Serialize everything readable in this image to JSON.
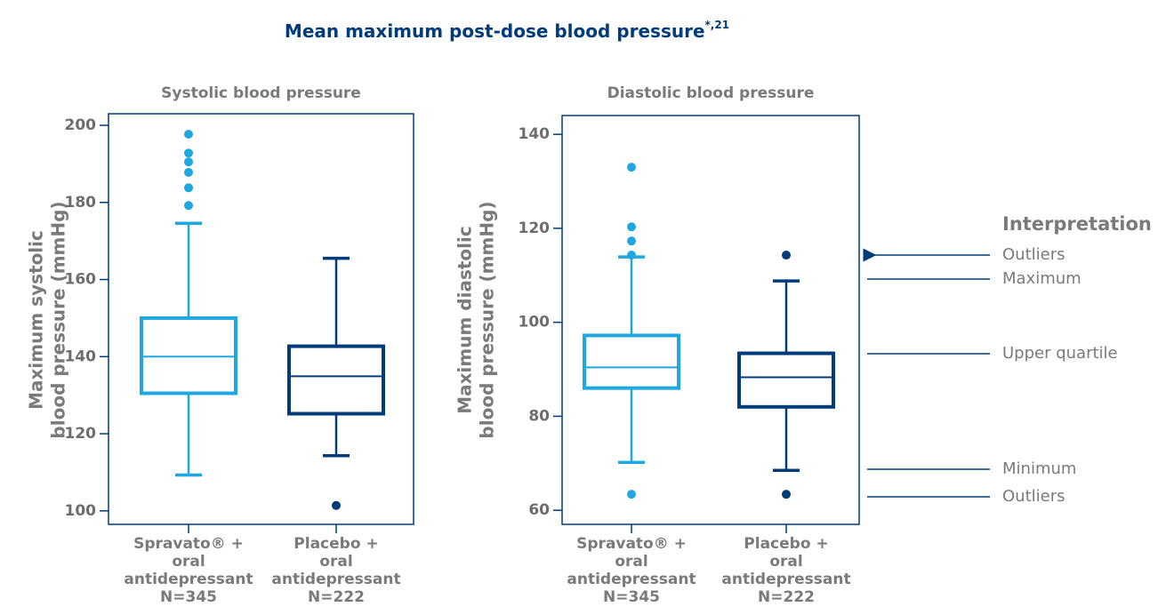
{
  "title": "Mean maximum post-dose blood pressure",
  "title_superscript": "*,21",
  "chart_data": [
    {
      "type": "box",
      "title": "Systolic blood pressure",
      "y_label": [
        "Maximum systolic",
        "blood pressure (mmHg)"
      ],
      "categories": [
        [
          "Spravato® +",
          "oral",
          "antidepressant",
          "N=345"
        ],
        [
          "Placebo +",
          "oral",
          "antidepressant",
          "N=222"
        ]
      ],
      "ylim": [
        96.5,
        203
      ],
      "yticks": [
        100,
        120,
        140,
        160,
        180,
        200
      ],
      "boxes": [
        {
          "color": "#1ea7e1",
          "min": 109.3,
          "q1": 130.5,
          "median": 140,
          "q3": 150,
          "max": 174.6,
          "outliers": [
            197.7,
            192.8,
            190.5,
            187.8,
            183.8,
            179.2
          ]
        },
        {
          "color": "#003b7a",
          "min": 114.3,
          "q1": 125.2,
          "median": 134.9,
          "q3": 142.7,
          "max": 165.5,
          "outliers": [
            101.4
          ]
        }
      ]
    },
    {
      "type": "box",
      "title": "Diastolic blood pressure",
      "y_label": [
        "Maximum diastolic",
        "blood pressure (mmHg)"
      ],
      "categories": [
        [
          "Spravato® +",
          "oral",
          "antidepressant",
          "N=345"
        ],
        [
          "Placebo +",
          "oral",
          "antidepressant",
          "N=222"
        ]
      ],
      "ylim": [
        57,
        144
      ],
      "yticks": [
        60,
        80,
        100,
        120,
        140
      ],
      "boxes": [
        {
          "color": "#1ea7e1",
          "min": 70.2,
          "q1": 86,
          "median": 90.4,
          "q3": 97.2,
          "max": 113.9,
          "outliers": [
            133,
            120.3,
            117.3,
            114.3,
            63.4
          ]
        },
        {
          "color": "#003b7a",
          "min": 68.5,
          "q1": 82,
          "median": 88.3,
          "q3": 93.4,
          "max": 108.8,
          "outliers": [
            114.3,
            63.4
          ]
        }
      ]
    }
  ],
  "interpretation": {
    "title": "Interpretation",
    "labels": [
      "Outliers",
      "Maximum",
      "Upper quartile",
      "Minimum",
      "Outliers"
    ]
  }
}
